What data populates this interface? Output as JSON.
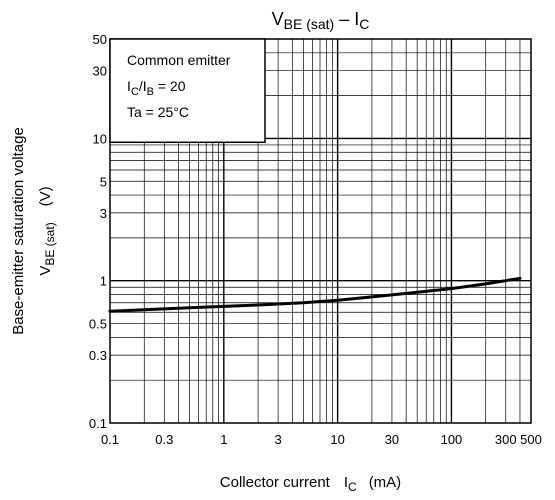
{
  "chart_data": {
    "type": "line",
    "x_scale": "log",
    "y_scale": "log",
    "xlim": [
      0.1,
      500
    ],
    "ylim": [
      0.1,
      50
    ],
    "title": {
      "main": "V",
      "sub1": "BE (sat)",
      "dash": " – I",
      "sub2": "C"
    },
    "xlabel": {
      "text": "Collector current",
      "sym": "I",
      "sub": "C",
      "unit": "(mA)"
    },
    "ylabel": {
      "line1": "Base-emitter saturation voltage",
      "sym": "V",
      "sub": "BE (sat)",
      "unit": "(V)"
    },
    "x_ticks": [
      {
        "value": 0.1,
        "label": "0.1"
      },
      {
        "value": 0.3,
        "label": "0.3"
      },
      {
        "value": 1,
        "label": "1"
      },
      {
        "value": 3,
        "label": "3"
      },
      {
        "value": 10,
        "label": "10"
      },
      {
        "value": 30,
        "label": "30"
      },
      {
        "value": 100,
        "label": "100"
      },
      {
        "value": 300,
        "label": "300"
      },
      {
        "value": 500,
        "label": "500"
      }
    ],
    "y_ticks": [
      {
        "value": 0.1,
        "label": "0.1"
      },
      {
        "value": 0.3,
        "label": "0.3"
      },
      {
        "value": 0.5,
        "label": "0.5"
      },
      {
        "value": 1,
        "label": "1"
      },
      {
        "value": 3,
        "label": "3"
      },
      {
        "value": 5,
        "label": "5"
      },
      {
        "value": 10,
        "label": "10"
      },
      {
        "value": 30,
        "label": "30"
      },
      {
        "value": 50,
        "label": "50"
      }
    ],
    "legend": {
      "line1": "Common emitter",
      "ratio": {
        "a": "I",
        "a_sub": "C",
        "slash": "/I",
        "b_sub": "B",
        "rest": " = 20"
      },
      "line3": "Ta = 25°C"
    },
    "series": [
      {
        "x": [
          0.1,
          0.2,
          0.5,
          1,
          2,
          5,
          10,
          20,
          50,
          100,
          200,
          400
        ],
        "y": [
          0.61,
          0.625,
          0.645,
          0.66,
          0.675,
          0.7,
          0.73,
          0.77,
          0.83,
          0.88,
          0.95,
          1.04
        ]
      }
    ],
    "grid": true
  },
  "colors": {
    "line": "#000000",
    "grid": "#000000",
    "background": "#ffffff"
  }
}
